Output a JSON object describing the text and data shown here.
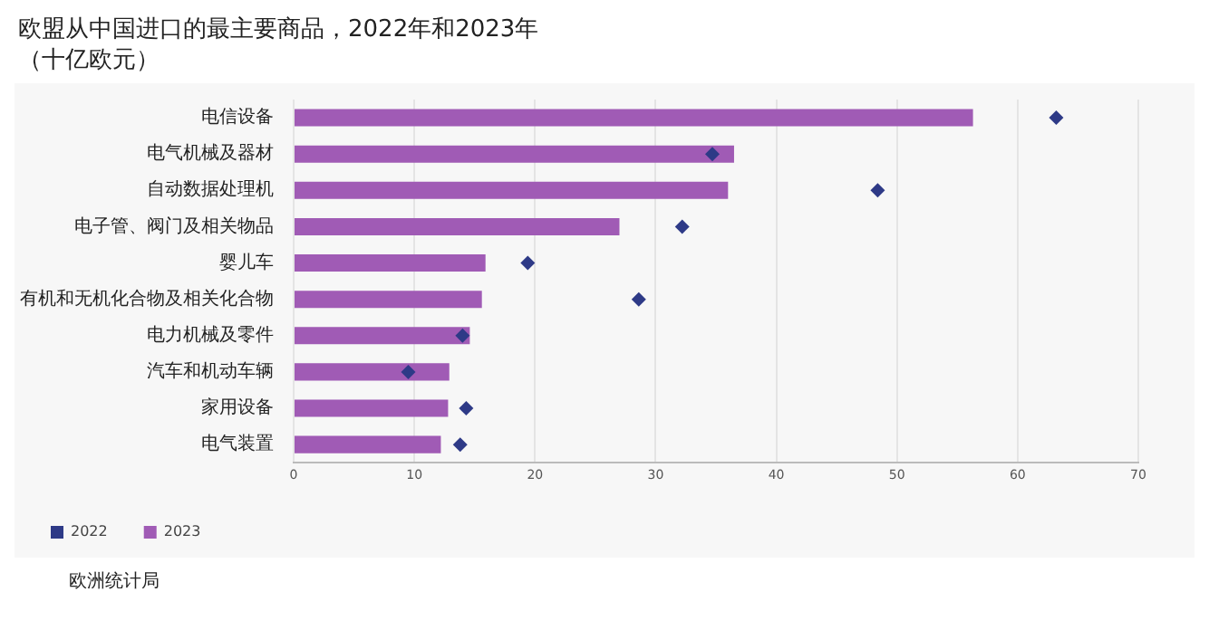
{
  "chart_data": {
    "type": "bar",
    "orientation": "horizontal",
    "title": "欧盟从中国进口的最主要商品，2022年和2023年（十亿欧元）",
    "categories": [
      "电信设备",
      "电气机械及器材",
      "自动数据处理机",
      "电子管、阀门及相关物品",
      "婴儿车",
      "有机和无机化合物及相关化合物",
      "电力机械及零件",
      "汽车和机动车辆",
      "家用设备",
      "电气装置"
    ],
    "series": [
      {
        "name": "2022",
        "type": "scatter",
        "color": "#2e3a87",
        "values": [
          63.2,
          34.7,
          48.4,
          32.2,
          19.4,
          28.6,
          14.0,
          9.5,
          14.3,
          13.8
        ]
      },
      {
        "name": "2023",
        "color": "#a05bb5",
        "values": [
          56.3,
          36.5,
          36.0,
          27.0,
          15.9,
          15.6,
          14.6,
          12.9,
          12.8,
          12.2
        ]
      }
    ],
    "xlim": [
      0,
      70
    ],
    "xticks": [
      0,
      10,
      20,
      30,
      40,
      50,
      60,
      70
    ],
    "grid": "x",
    "legend": "bottom left",
    "marker": "diamond",
    "annotations": [
      "欧洲统计局"
    ]
  }
}
